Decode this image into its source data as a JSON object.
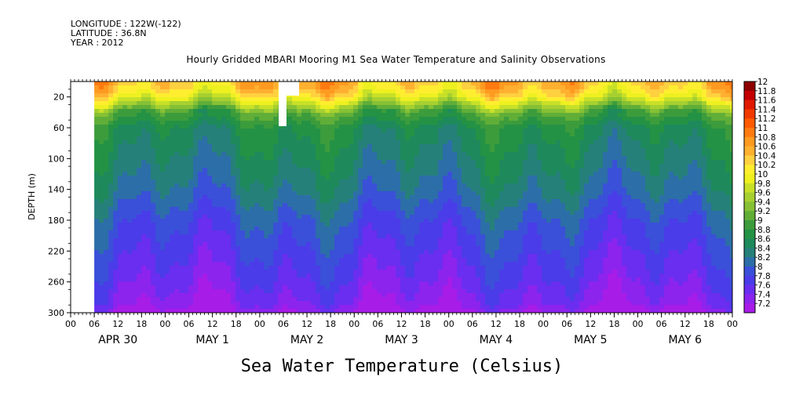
{
  "header": {
    "longitude": "LONGITUDE : 122W(-122)",
    "latitude": "LATITUDE : 36.8N",
    "year": "YEAR : 2012"
  },
  "chart_data": {
    "type": "heatmap",
    "title": "Hourly Gridded MBARI Mooring M1 Sea Water Temperature and Salinity Observations",
    "xlabel": "",
    "ylabel": "DEPTH (m)",
    "colorbar_title": "Sea Water Temperature (Celsius)",
    "x_range_hours": [
      0,
      168
    ],
    "data_start_hour": 6,
    "y_range": [
      300,
      0
    ],
    "y_ticks": [
      20,
      60,
      100,
      140,
      180,
      220,
      260,
      300
    ],
    "x_hour_ticks": [
      "00",
      "06",
      "12",
      "18",
      "00",
      "06",
      "12",
      "18",
      "00",
      "06",
      "12",
      "18",
      "00",
      "06",
      "12",
      "18",
      "00",
      "06",
      "12",
      "18",
      "00",
      "06",
      "12",
      "18",
      "00",
      "06",
      "12",
      "18",
      "00"
    ],
    "x_date_labels": [
      "APR 30",
      "MAY  1",
      "MAY  2",
      "MAY  3",
      "MAY  4",
      "MAY  5",
      "MAY  6"
    ],
    "colorbar_levels": [
      "12",
      "11.8",
      "11.6",
      "11.4",
      "11.2",
      "11",
      "10.8",
      "10.6",
      "10.4",
      "10.2",
      "10",
      "9.8",
      "9.6",
      "9.4",
      "9.2",
      "9",
      "8.8",
      "8.6",
      "8.4",
      "8.2",
      "8",
      "7.8",
      "7.6",
      "7.4",
      "7.2"
    ],
    "colorbar_colors": [
      "#8e0000",
      "#c40000",
      "#e01a00",
      "#f03a00",
      "#ff5a00",
      "#ff7a10",
      "#ff9a20",
      "#ffb030",
      "#ffd040",
      "#ffee30",
      "#eef020",
      "#c8e028",
      "#a6d030",
      "#86c034",
      "#60ae38",
      "#3c9c3c",
      "#249244",
      "#1e8a5c",
      "#26807a",
      "#2c6ea8",
      "#3a50d8",
      "#4a3ce8",
      "#6a2ef0",
      "#8c24ee",
      "#a81ce8"
    ],
    "depth_profile": [
      {
        "depth_m": 5,
        "temp_c": 10.6
      },
      {
        "depth_m": 20,
        "temp_c": 10.2
      },
      {
        "depth_m": 40,
        "temp_c": 9.2
      },
      {
        "depth_m": 60,
        "temp_c": 8.8
      },
      {
        "depth_m": 100,
        "temp_c": 8.6
      },
      {
        "depth_m": 140,
        "temp_c": 8.4
      },
      {
        "depth_m": 180,
        "temp_c": 8.1
      },
      {
        "depth_m": 220,
        "temp_c": 7.9
      },
      {
        "depth_m": 260,
        "temp_c": 7.7
      },
      {
        "depth_m": 290,
        "temp_c": 7.5
      },
      {
        "depth_m": 300,
        "temp_c": 7.3
      }
    ]
  }
}
